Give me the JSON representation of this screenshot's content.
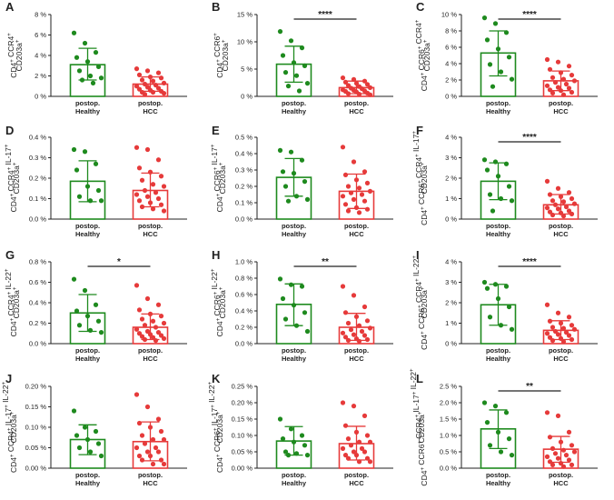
{
  "colors": {
    "healthy": "#1e8a1e",
    "hcc": "#e63a3a",
    "axis": "#222222"
  },
  "chart_data": [
    {
      "panel": "A",
      "type": "scatter",
      "ylabel_lines": [
        [
          [
            "CD4",
            "+"
          ],
          [
            " CCR4",
            "+"
          ]
        ],
        [
          [
            "CD203a",
            "+"
          ]
        ]
      ],
      "ylim": [
        0,
        8
      ],
      "yticks": [
        0,
        2,
        4,
        6,
        8
      ],
      "tick_suffix": "%",
      "tick_labels": [
        "0 %",
        "2 %",
        "4 %",
        "6 %",
        "8 %"
      ],
      "categories": [
        "postop. Healthy",
        "postop. HCC"
      ],
      "series": [
        {
          "bar": 3.1,
          "sd": [
            1.6,
            4.7
          ],
          "points": [
            6.2,
            5.2,
            4.3,
            3.8,
            3.4,
            2.9,
            2.5,
            2.0,
            1.8,
            1.6,
            1.3
          ]
        },
        {
          "bar": 1.2,
          "sd": [
            0.5,
            1.9
          ],
          "points": [
            2.7,
            2.5,
            2.3,
            2.1,
            1.9,
            1.8,
            1.6,
            1.5,
            1.3,
            1.2,
            1.1,
            1.0,
            0.9,
            0.8,
            0.7,
            0.6,
            0.5,
            0.4,
            0.4,
            0.3,
            0.2
          ]
        }
      ],
      "significance": null
    },
    {
      "panel": "B",
      "type": "scatter",
      "ylabel_lines": [
        [
          [
            "CD4",
            "+"
          ],
          [
            " CCR6",
            "+"
          ]
        ],
        [
          [
            "CD203a",
            "+"
          ]
        ]
      ],
      "ylim": [
        0,
        15
      ],
      "yticks": [
        0,
        5,
        10,
        15
      ],
      "tick_suffix": "%",
      "tick_labels": [
        "0 %",
        "5 %",
        "10 %",
        "15 %"
      ],
      "categories": [
        "postop. Healthy",
        "postop. HCC"
      ],
      "series": [
        {
          "bar": 5.9,
          "sd": [
            2.6,
            9.2
          ],
          "points": [
            11.9,
            10.2,
            8.9,
            7.5,
            6.2,
            5.6,
            4.4,
            3.8,
            2.4,
            1.9,
            1.0
          ]
        },
        {
          "bar": 1.6,
          "sd": [
            0.5,
            2.8
          ],
          "points": [
            3.4,
            3.1,
            2.8,
            2.6,
            2.4,
            2.2,
            2.0,
            1.8,
            1.6,
            1.5,
            1.4,
            1.2,
            1.1,
            1.0,
            0.9,
            0.8,
            0.6,
            0.5,
            0.4,
            0.3
          ]
        }
      ],
      "significance": "****"
    },
    {
      "panel": "C",
      "type": "scatter",
      "ylabel_lines": [
        [
          [
            "CD4",
            "+"
          ],
          [
            " CCR6",
            "+"
          ],
          [
            " CCR4",
            "+"
          ]
        ],
        [
          [
            "CD203a",
            "+"
          ]
        ]
      ],
      "ylim": [
        0,
        10
      ],
      "yticks": [
        0,
        2,
        4,
        6,
        8,
        10
      ],
      "tick_suffix": "%",
      "tick_labels": [
        "0 %",
        "2 %",
        "4 %",
        "6 %",
        "8 %",
        "10 %"
      ],
      "categories": [
        "postop. Healthy",
        "postop. HCC"
      ],
      "series": [
        {
          "bar": 5.3,
          "sd": [
            2.5,
            8.0
          ],
          "points": [
            9.6,
            8.9,
            7.8,
            6.9,
            5.8,
            4.8,
            3.9,
            3.0,
            2.1,
            1.2
          ]
        },
        {
          "bar": 1.9,
          "sd": [
            0.7,
            3.1
          ],
          "points": [
            4.5,
            4.2,
            3.7,
            3.3,
            2.9,
            2.6,
            2.3,
            2.1,
            1.9,
            1.7,
            1.5,
            1.3,
            1.1,
            1.0,
            0.8,
            0.7,
            0.5,
            0.4,
            0.2
          ]
        }
      ],
      "significance": "****"
    },
    {
      "panel": "D",
      "type": "scatter",
      "ylabel_lines": [
        [
          [
            "CD4",
            "+"
          ],
          [
            " CCR4",
            "+"
          ],
          [
            " IL-17",
            "+"
          ]
        ],
        [
          [
            "CD203a",
            "+"
          ]
        ]
      ],
      "ylim": [
        0,
        0.4
      ],
      "yticks": [
        0,
        0.1,
        0.2,
        0.3,
        0.4
      ],
      "tick_suffix": "%",
      "tick_labels": [
        "0.0 %",
        "0.1 %",
        "0.2 %",
        "0.3 %",
        "0.4 %"
      ],
      "categories": [
        "postop. Healthy",
        "postop. HCC"
      ],
      "series": [
        {
          "bar": 0.185,
          "sd": [
            0.085,
            0.285
          ],
          "points": [
            0.34,
            0.33,
            0.27,
            0.24,
            0.16,
            0.14,
            0.11,
            0.09,
            0.09
          ]
        },
        {
          "bar": 0.14,
          "sd": [
            0.06,
            0.225
          ],
          "points": [
            0.35,
            0.34,
            0.29,
            0.25,
            0.23,
            0.21,
            0.19,
            0.17,
            0.16,
            0.14,
            0.13,
            0.12,
            0.11,
            0.1,
            0.09,
            0.08,
            0.07,
            0.06,
            0.05,
            0.04
          ]
        }
      ],
      "significance": null
    },
    {
      "panel": "E",
      "type": "scatter",
      "ylabel_lines": [
        [
          [
            "CD4",
            "+"
          ],
          [
            " CCR6",
            "+"
          ],
          [
            " IL-17",
            "+"
          ]
        ],
        [
          [
            "CD203a",
            "+"
          ]
        ]
      ],
      "ylim": [
        0,
        0.5
      ],
      "yticks": [
        0,
        0.1,
        0.2,
        0.3,
        0.4,
        0.5
      ],
      "tick_suffix": "%",
      "tick_labels": [
        "0.0 %",
        "0.1 %",
        "0.2 %",
        "0.3 %",
        "0.4 %",
        "0.5 %"
      ],
      "categories": [
        "postop. Healthy",
        "postop. HCC"
      ],
      "series": [
        {
          "bar": 0.255,
          "sd": [
            0.14,
            0.37
          ],
          "points": [
            0.42,
            0.41,
            0.36,
            0.29,
            0.28,
            0.23,
            0.2,
            0.14,
            0.12,
            0.11
          ]
        },
        {
          "bar": 0.17,
          "sd": [
            0.065,
            0.275
          ],
          "points": [
            0.44,
            0.35,
            0.29,
            0.27,
            0.24,
            0.22,
            0.2,
            0.19,
            0.17,
            0.16,
            0.15,
            0.14,
            0.12,
            0.11,
            0.09,
            0.07,
            0.06,
            0.05,
            0.04
          ]
        }
      ],
      "significance": null
    },
    {
      "panel": "F",
      "type": "scatter",
      "ylabel_lines": [
        [
          [
            "CD4",
            "+"
          ],
          [
            " CCR6",
            "+"
          ],
          [
            " CCR4",
            "+"
          ],
          [
            " IL-17",
            "+"
          ]
        ],
        [
          [
            "CD203a",
            "+"
          ]
        ]
      ],
      "ylim": [
        0,
        4
      ],
      "yticks": [
        0,
        1,
        2,
        3,
        4
      ],
      "tick_suffix": "%",
      "tick_labels": [
        "0 %",
        "1 %",
        "2 %",
        "3 %",
        "4 %"
      ],
      "categories": [
        "postop. Healthy",
        "postop. HCC"
      ],
      "series": [
        {
          "bar": 1.85,
          "sd": [
            0.95,
            2.75
          ],
          "points": [
            2.9,
            2.8,
            2.7,
            2.4,
            2.1,
            1.6,
            1.2,
            1.0,
            0.9,
            0.4
          ]
        },
        {
          "bar": 0.7,
          "sd": [
            0.25,
            1.2
          ],
          "points": [
            1.85,
            1.5,
            1.3,
            1.2,
            1.1,
            1.0,
            0.9,
            0.85,
            0.75,
            0.7,
            0.6,
            0.55,
            0.5,
            0.4,
            0.35,
            0.3,
            0.25,
            0.2,
            0.15
          ]
        }
      ],
      "significance": "****"
    },
    {
      "panel": "G",
      "type": "scatter",
      "ylabel_lines": [
        [
          [
            "CD4",
            "+"
          ],
          [
            " CCR4",
            "+"
          ],
          [
            " IL-22",
            "+"
          ]
        ],
        [
          [
            "CD203a",
            "+"
          ]
        ]
      ],
      "ylim": [
        0,
        0.8
      ],
      "yticks": [
        0,
        0.2,
        0.4,
        0.6,
        0.8
      ],
      "tick_suffix": "%",
      "tick_labels": [
        "0.0 %",
        "0.2 %",
        "0.4 %",
        "0.6 %",
        "0.8 %"
      ],
      "categories": [
        "postop. Healthy",
        "postop. HCC"
      ],
      "series": [
        {
          "bar": 0.3,
          "sd": [
            0.12,
            0.48
          ],
          "points": [
            0.63,
            0.52,
            0.38,
            0.32,
            0.27,
            0.22,
            0.18,
            0.13,
            0.11
          ]
        },
        {
          "bar": 0.16,
          "sd": [
            0.04,
            0.29
          ],
          "points": [
            0.57,
            0.44,
            0.38,
            0.33,
            0.29,
            0.27,
            0.24,
            0.22,
            0.2,
            0.18,
            0.16,
            0.14,
            0.12,
            0.11,
            0.1,
            0.09,
            0.08,
            0.07,
            0.06,
            0.05,
            0.04,
            0.03
          ]
        }
      ],
      "significance": "*"
    },
    {
      "panel": "H",
      "type": "scatter",
      "ylabel_lines": [
        [
          [
            "CD4",
            "+"
          ],
          [
            " CCR6",
            "+"
          ],
          [
            " IL-22",
            "+"
          ]
        ],
        [
          [
            "CD203a",
            "+"
          ]
        ]
      ],
      "ylim": [
        0,
        1.0
      ],
      "yticks": [
        0,
        0.2,
        0.4,
        0.6,
        0.8,
        1.0
      ],
      "tick_suffix": "%",
      "tick_labels": [
        "0.0 %",
        "0.2 %",
        "0.4 %",
        "0.6 %",
        "0.8 %",
        "1.0 %"
      ],
      "categories": [
        "postop. Healthy",
        "postop. HCC"
      ],
      "series": [
        {
          "bar": 0.48,
          "sd": [
            0.22,
            0.73
          ],
          "points": [
            0.79,
            0.72,
            0.7,
            0.55,
            0.47,
            0.38,
            0.3,
            0.22,
            0.15
          ]
        },
        {
          "bar": 0.2,
          "sd": [
            0.04,
            0.37
          ],
          "points": [
            0.7,
            0.59,
            0.45,
            0.38,
            0.33,
            0.28,
            0.25,
            0.22,
            0.19,
            0.17,
            0.15,
            0.13,
            0.11,
            0.1,
            0.08,
            0.06,
            0.05,
            0.04,
            0.03
          ]
        }
      ],
      "significance": "**"
    },
    {
      "panel": "I",
      "type": "scatter",
      "ylabel_lines": [
        [
          [
            "CD4",
            "+"
          ],
          [
            " CCR6",
            "+"
          ],
          [
            " CCR4",
            "+"
          ],
          [
            " IL-22",
            "+"
          ]
        ],
        [
          [
            "CD203a",
            "+"
          ]
        ]
      ],
      "ylim": [
        0,
        4
      ],
      "yticks": [
        0,
        1,
        2,
        3,
        4
      ],
      "tick_suffix": "%",
      "tick_labels": [
        "0 %",
        "1 %",
        "2 %",
        "3 %",
        "4 %"
      ],
      "categories": [
        "postop. Healthy",
        "postop. HCC"
      ],
      "series": [
        {
          "bar": 1.9,
          "sd": [
            0.9,
            2.9
          ],
          "points": [
            3.0,
            2.9,
            2.8,
            2.7,
            2.2,
            1.8,
            1.3,
            0.9,
            0.7
          ]
        },
        {
          "bar": 0.65,
          "sd": [
            0.2,
            1.12
          ],
          "points": [
            1.9,
            1.5,
            1.3,
            1.1,
            1.0,
            0.9,
            0.8,
            0.75,
            0.7,
            0.6,
            0.55,
            0.5,
            0.45,
            0.4,
            0.3,
            0.25,
            0.2,
            0.15,
            0.1
          ]
        }
      ],
      "significance": "****"
    },
    {
      "panel": "J",
      "type": "scatter",
      "ylabel_lines": [
        [
          [
            "CD4",
            "+"
          ],
          [
            " CCR4",
            "+"
          ],
          [
            " IL-17",
            "+"
          ],
          [
            " IL-22",
            "+"
          ]
        ],
        [
          [
            "CD203a",
            "+"
          ]
        ]
      ],
      "ylim": [
        0,
        0.2
      ],
      "yticks": [
        0,
        0.05,
        0.1,
        0.15,
        0.2
      ],
      "tick_suffix": "%",
      "tick_labels": [
        "0.00 %",
        "0.05 %",
        "0.10 %",
        "0.15 %",
        "0.20 %"
      ],
      "categories": [
        "postop. Healthy",
        "postop. HCC"
      ],
      "series": [
        {
          "bar": 0.07,
          "sd": [
            0.033,
            0.106
          ],
          "points": [
            0.14,
            0.1,
            0.09,
            0.08,
            0.07,
            0.06,
            0.05,
            0.04,
            0.03
          ]
        },
        {
          "bar": 0.065,
          "sd": [
            0.018,
            0.113
          ],
          "points": [
            0.18,
            0.15,
            0.12,
            0.11,
            0.1,
            0.09,
            0.08,
            0.07,
            0.07,
            0.06,
            0.05,
            0.05,
            0.04,
            0.04,
            0.03,
            0.03,
            0.02,
            0.02,
            0.01,
            0.01
          ]
        }
      ],
      "significance": null
    },
    {
      "panel": "K",
      "type": "scatter",
      "ylabel_lines": [
        [
          [
            "CD4",
            "+"
          ],
          [
            " CCR6",
            "+"
          ],
          [
            " IL-17",
            "+"
          ],
          [
            " IL-22",
            "+"
          ]
        ],
        [
          [
            "CD203a",
            "+"
          ]
        ]
      ],
      "ylim": [
        0,
        0.25
      ],
      "yticks": [
        0,
        0.05,
        0.1,
        0.15,
        0.2,
        0.25
      ],
      "tick_suffix": "%",
      "tick_labels": [
        "0.00 %",
        "0.05 %",
        "0.10 %",
        "0.15 %",
        "0.20 %",
        "0.25 %"
      ],
      "categories": [
        "postop. Healthy",
        "postop. HCC"
      ],
      "series": [
        {
          "bar": 0.083,
          "sd": [
            0.04,
            0.127
          ],
          "points": [
            0.15,
            0.12,
            0.1,
            0.09,
            0.08,
            0.07,
            0.05,
            0.045,
            0.04,
            0.04
          ]
        },
        {
          "bar": 0.075,
          "sd": [
            0.025,
            0.128
          ],
          "points": [
            0.2,
            0.19,
            0.16,
            0.13,
            0.11,
            0.1,
            0.09,
            0.08,
            0.08,
            0.07,
            0.06,
            0.06,
            0.05,
            0.05,
            0.04,
            0.04,
            0.03,
            0.03,
            0.02,
            0.02
          ]
        }
      ],
      "significance": null
    },
    {
      "panel": "L",
      "type": "scatter",
      "ylabel_lines": [
        [
          [
            "CD4",
            "+"
          ],
          [
            " CCR6",
            "+"
          ],
          [
            " CCR4",
            "+"
          ],
          [
            " IL-17",
            "+"
          ],
          [
            " IL-22",
            "+"
          ]
        ],
        [
          [
            "CD203a",
            "+"
          ]
        ]
      ],
      "ylim": [
        0,
        2.5
      ],
      "yticks": [
        0,
        0.5,
        1.0,
        1.5,
        2.0,
        2.5
      ],
      "tick_suffix": "%",
      "tick_labels": [
        "0.0 %",
        "0.5 %",
        "1.0 %",
        "1.5 %",
        "2.0 %",
        "2.5 %"
      ],
      "categories": [
        "postop. Healthy",
        "postop. HCC"
      ],
      "series": [
        {
          "bar": 1.2,
          "sd": [
            0.6,
            1.78
          ],
          "points": [
            2.0,
            1.9,
            1.7,
            1.4,
            1.1,
            0.9,
            0.7,
            0.5,
            0.4
          ]
        },
        {
          "bar": 0.58,
          "sd": [
            0.18,
            0.97
          ],
          "points": [
            1.7,
            1.6,
            1.1,
            0.95,
            0.8,
            0.7,
            0.6,
            0.55,
            0.5,
            0.45,
            0.4,
            0.35,
            0.3,
            0.25,
            0.2,
            0.15,
            0.1,
            0.1,
            0.05
          ]
        }
      ],
      "significance": "**"
    }
  ]
}
